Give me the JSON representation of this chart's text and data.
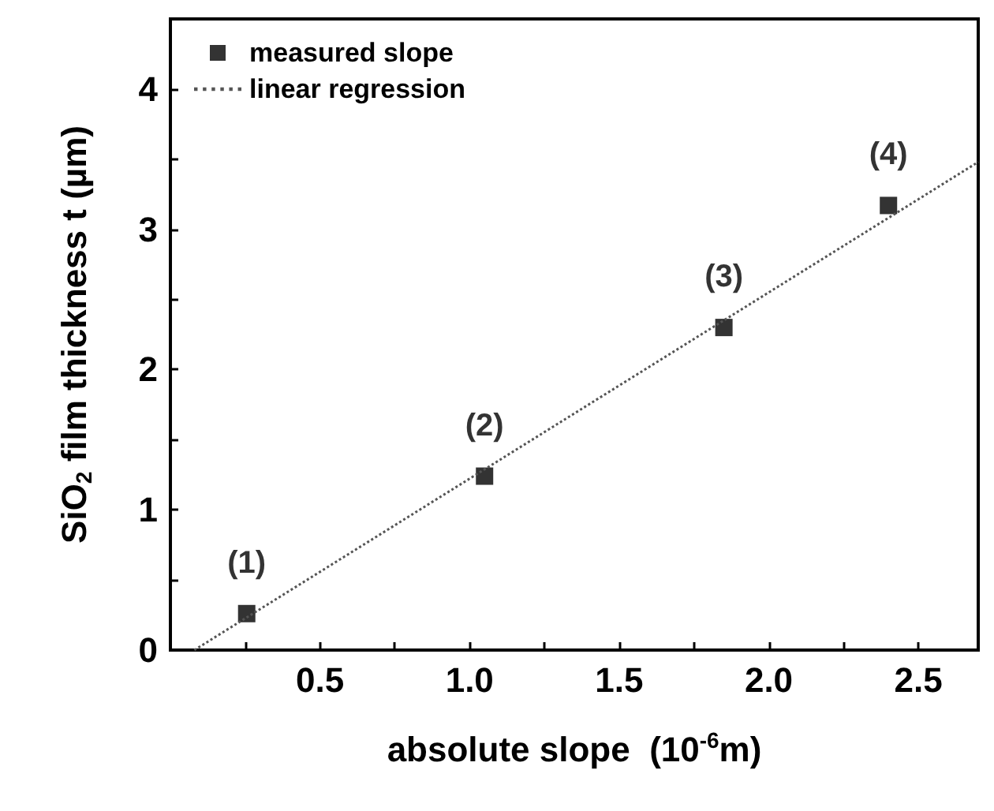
{
  "chart_data": {
    "type": "scatter",
    "xlabel": "absolute slope  (10$^{-6}$m)",
    "ylabel": "SiO$_{2}$ film thickness t (µm)",
    "xlim": [
      0,
      2.7
    ],
    "ylim": [
      0,
      4.5
    ],
    "xticks": [
      {
        "value": 0.25,
        "label": null
      },
      0.5,
      {
        "value": 0.75,
        "label": null
      },
      {
        "value": 1,
        "label": "1.0"
      },
      {
        "value": 1.25,
        "label": null
      },
      1.5,
      {
        "value": 1.75,
        "label": null
      },
      {
        "value": 2,
        "label": "2.0"
      },
      {
        "value": 2.25,
        "label": null
      },
      2.5
    ],
    "yticks": [
      0,
      {
        "value": 0.5,
        "label": null
      },
      1,
      {
        "value": 1.5,
        "label": null
      },
      2,
      {
        "value": 2.5,
        "label": null
      },
      3,
      {
        "value": 3.5,
        "label": null
      },
      4
    ],
    "series": [
      {
        "name": "measured slope",
        "color": "#000000",
        "marker": "square",
        "x": [
          0.255,
          1.05,
          1.85,
          2.4
        ],
        "values": [
          0.26,
          1.24,
          2.3,
          3.17
        ]
      },
      {
        "name": "linear regression",
        "type": "line",
        "color": "#555555",
        "line_style": "dotted",
        "marker": "none",
        "x": [
          0.08,
          2.7
        ],
        "values": [
          0,
          3.48
        ]
      }
    ],
    "annotations": [
      {
        "text": "(1)",
        "x": 0.255,
        "y": 0.26
      },
      {
        "text": "(2)",
        "x": 1.05,
        "y": 1.24
      },
      {
        "text": "(3)",
        "x": 1.85,
        "y": 2.3
      },
      {
        "text": "(4)",
        "x": 2.4,
        "y": 3.17
      }
    ],
    "legend": "top left",
    "grid": false
  }
}
